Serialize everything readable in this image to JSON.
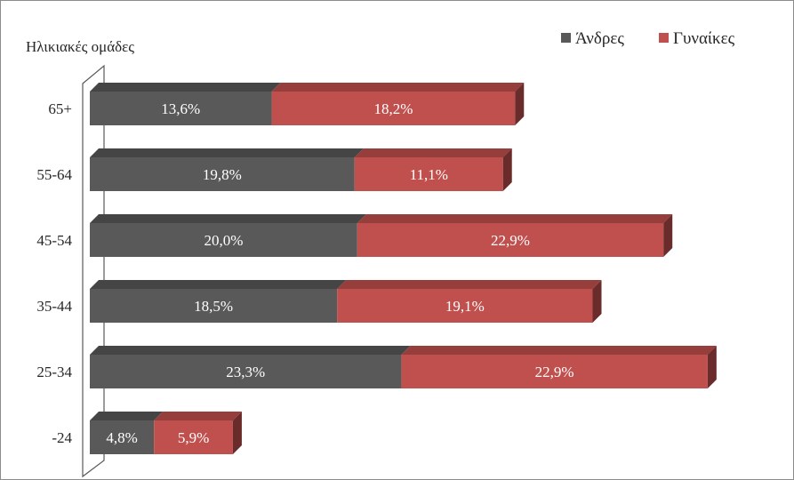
{
  "chart_data": {
    "type": "bar",
    "orientation": "horizontal",
    "stacked": true,
    "style": "3d",
    "ylabel": "Ηλικιακές ομάδες",
    "categories": [
      "65+",
      "55-64",
      "45-54",
      "35-44",
      "25-34",
      "-24"
    ],
    "series": [
      {
        "name": "Άνδρες",
        "color": "#595959",
        "values": [
          13.6,
          19.8,
          20.0,
          18.5,
          23.3,
          4.8
        ],
        "labels": [
          "13,6%",
          "19,8%",
          "20,0%",
          "18,5%",
          "23,3%",
          "4,8%"
        ]
      },
      {
        "name": "Γυναίκες",
        "color": "#c0504d",
        "values": [
          18.2,
          11.1,
          22.9,
          19.1,
          22.9,
          5.9
        ],
        "labels": [
          "18,2%",
          "11,1%",
          "22,9%",
          "19,1%",
          "22,9%",
          "5,9%"
        ]
      }
    ],
    "legend_position": "top-right",
    "grid": false
  }
}
